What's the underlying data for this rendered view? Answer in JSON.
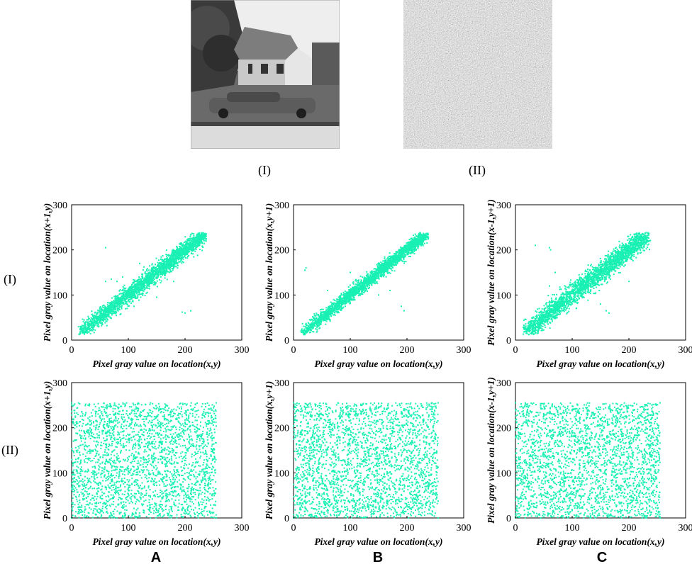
{
  "image_captions": [
    "(I)",
    "(II)"
  ],
  "row_labels": [
    "(I)",
    "(II)"
  ],
  "column_labels": [
    "A",
    "B",
    "C"
  ],
  "marker_color": "#19f0b4",
  "chart_data": [
    {
      "type": "scatter",
      "row": "(I)",
      "column": "A",
      "xlabel": "Pixel gray value on location(x,y)",
      "ylabel": "Pixel gray value on location(x+1,y)",
      "xlim": [
        0,
        300
      ],
      "ylim": [
        0,
        300
      ],
      "xticks": [
        "0",
        "100",
        "200",
        "300"
      ],
      "yticks": [
        "0",
        "100",
        "200",
        "300"
      ],
      "grid": false,
      "pattern": "strongly correlated along y = x from about 15 to 235",
      "points": [
        [
          15,
          18
        ],
        [
          20,
          22
        ],
        [
          25,
          27
        ],
        [
          30,
          28
        ],
        [
          35,
          38
        ],
        [
          40,
          40
        ],
        [
          45,
          43
        ],
        [
          50,
          52
        ],
        [
          55,
          54
        ],
        [
          60,
          62
        ],
        [
          65,
          63
        ],
        [
          70,
          72
        ],
        [
          75,
          74
        ],
        [
          80,
          82
        ],
        [
          85,
          86
        ],
        [
          90,
          88
        ],
        [
          95,
          97
        ],
        [
          100,
          102
        ],
        [
          105,
          103
        ],
        [
          110,
          112
        ],
        [
          115,
          114
        ],
        [
          120,
          122
        ],
        [
          125,
          126
        ],
        [
          130,
          128
        ],
        [
          135,
          137
        ],
        [
          140,
          142
        ],
        [
          145,
          144
        ],
        [
          150,
          152
        ],
        [
          155,
          156
        ],
        [
          160,
          158
        ],
        [
          165,
          167
        ],
        [
          170,
          172
        ],
        [
          175,
          174
        ],
        [
          180,
          182
        ],
        [
          185,
          186
        ],
        [
          190,
          188
        ],
        [
          195,
          197
        ],
        [
          200,
          202
        ],
        [
          205,
          204
        ],
        [
          210,
          212
        ],
        [
          215,
          216
        ],
        [
          220,
          218
        ],
        [
          225,
          227
        ],
        [
          230,
          232
        ],
        [
          235,
          236
        ],
        [
          60,
          130
        ],
        [
          70,
          135
        ],
        [
          80,
          130
        ],
        [
          60,
          205
        ],
        [
          200,
          60
        ],
        [
          210,
          65
        ],
        [
          195,
          62
        ],
        [
          120,
          170
        ],
        [
          150,
          95
        ],
        [
          110,
          75
        ],
        [
          90,
          140
        ],
        [
          180,
          130
        ]
      ]
    },
    {
      "type": "scatter",
      "row": "(I)",
      "column": "B",
      "xlabel": "Pixel gray value on location(x,y)",
      "ylabel": "Pixel gray value on location(x,y+1)",
      "xlim": [
        0,
        300
      ],
      "ylim": [
        0,
        300
      ],
      "xticks": [
        "0",
        "100",
        "200",
        "300"
      ],
      "yticks": [
        "0",
        "100",
        "200",
        "300"
      ],
      "grid": false,
      "pattern": "strongly correlated along y = x from about 15 to 235",
      "points": [
        [
          15,
          17
        ],
        [
          20,
          21
        ],
        [
          25,
          26
        ],
        [
          30,
          31
        ],
        [
          35,
          34
        ],
        [
          40,
          41
        ],
        [
          45,
          46
        ],
        [
          50,
          49
        ],
        [
          55,
          56
        ],
        [
          60,
          61
        ],
        [
          65,
          64
        ],
        [
          70,
          71
        ],
        [
          75,
          76
        ],
        [
          80,
          79
        ],
        [
          85,
          86
        ],
        [
          90,
          91
        ],
        [
          95,
          94
        ],
        [
          100,
          101
        ],
        [
          105,
          106
        ],
        [
          110,
          109
        ],
        [
          115,
          116
        ],
        [
          120,
          121
        ],
        [
          125,
          124
        ],
        [
          130,
          131
        ],
        [
          135,
          136
        ],
        [
          140,
          139
        ],
        [
          145,
          146
        ],
        [
          150,
          151
        ],
        [
          155,
          154
        ],
        [
          160,
          161
        ],
        [
          165,
          166
        ],
        [
          170,
          169
        ],
        [
          175,
          176
        ],
        [
          180,
          181
        ],
        [
          185,
          184
        ],
        [
          190,
          191
        ],
        [
          195,
          196
        ],
        [
          200,
          199
        ],
        [
          205,
          206
        ],
        [
          210,
          211
        ],
        [
          215,
          214
        ],
        [
          220,
          221
        ],
        [
          225,
          226
        ],
        [
          230,
          229
        ],
        [
          235,
          236
        ],
        [
          20,
          155
        ],
        [
          22,
          160
        ],
        [
          195,
          65
        ],
        [
          190,
          75
        ],
        [
          60,
          110
        ],
        [
          170,
          110
        ],
        [
          100,
          150
        ],
        [
          150,
          100
        ]
      ]
    },
    {
      "type": "scatter",
      "row": "(I)",
      "column": "C",
      "xlabel": "Pixel gray value on location(x,y)",
      "ylabel": "Pixel gray value on location(x-1,y+1)",
      "xlim": [
        0,
        300
      ],
      "ylim": [
        0,
        300
      ],
      "xticks": [
        "0",
        "100",
        "200",
        "300"
      ],
      "yticks": [
        "0",
        "100",
        "200",
        "300"
      ],
      "grid": false,
      "pattern": "correlated along y = x with wider spread from about 15 to 230",
      "points": [
        [
          15,
          18
        ],
        [
          20,
          24
        ],
        [
          25,
          22
        ],
        [
          30,
          34
        ],
        [
          35,
          32
        ],
        [
          40,
          44
        ],
        [
          45,
          42
        ],
        [
          50,
          54
        ],
        [
          55,
          52
        ],
        [
          60,
          64
        ],
        [
          65,
          62
        ],
        [
          70,
          74
        ],
        [
          75,
          72
        ],
        [
          80,
          84
        ],
        [
          85,
          82
        ],
        [
          90,
          94
        ],
        [
          95,
          92
        ],
        [
          100,
          104
        ],
        [
          105,
          102
        ],
        [
          110,
          114
        ],
        [
          115,
          112
        ],
        [
          120,
          124
        ],
        [
          125,
          122
        ],
        [
          130,
          134
        ],
        [
          135,
          132
        ],
        [
          140,
          144
        ],
        [
          145,
          142
        ],
        [
          150,
          154
        ],
        [
          155,
          152
        ],
        [
          160,
          164
        ],
        [
          165,
          162
        ],
        [
          170,
          174
        ],
        [
          175,
          172
        ],
        [
          180,
          184
        ],
        [
          185,
          182
        ],
        [
          190,
          194
        ],
        [
          195,
          192
        ],
        [
          200,
          204
        ],
        [
          205,
          202
        ],
        [
          210,
          214
        ],
        [
          215,
          212
        ],
        [
          220,
          224
        ],
        [
          225,
          222
        ],
        [
          230,
          228
        ],
        [
          35,
          210
        ],
        [
          60,
          205
        ],
        [
          62,
          200
        ],
        [
          165,
          60
        ],
        [
          160,
          65
        ],
        [
          70,
          150
        ],
        [
          150,
          80
        ],
        [
          60,
          120
        ],
        [
          200,
          130
        ]
      ]
    },
    {
      "type": "scatter",
      "row": "(II)",
      "column": "A",
      "xlabel": "Pixel gray value on location(x,y)",
      "ylabel": "Pixel gray value on location(x+1,y)",
      "xlim": [
        0,
        300
      ],
      "ylim": [
        0,
        300
      ],
      "xticks": [
        "0",
        "100",
        "200",
        "300"
      ],
      "yticks": [
        "0",
        "100",
        "200",
        "300"
      ],
      "grid": false,
      "pattern": "uniformly distributed over 0 to 255 on both axes",
      "points": [
        [
          0,
          0
        ],
        [
          255,
          0
        ],
        [
          0,
          255
        ],
        [
          255,
          255
        ],
        [
          128,
          128
        ],
        [
          64,
          192
        ],
        [
          192,
          64
        ],
        [
          32,
          32
        ],
        [
          224,
          224
        ],
        [
          32,
          224
        ],
        [
          224,
          32
        ],
        [
          96,
          160
        ],
        [
          160,
          96
        ],
        [
          16,
          128
        ],
        [
          240,
          128
        ],
        [
          128,
          16
        ],
        [
          128,
          240
        ]
      ]
    },
    {
      "type": "scatter",
      "row": "(II)",
      "column": "B",
      "xlabel": "Pixel gray value on location(x,y)",
      "ylabel": "Pixel gray value on location(x,y+1)",
      "xlim": [
        0,
        300
      ],
      "ylim": [
        0,
        300
      ],
      "xticks": [
        "0",
        "100",
        "200",
        "300"
      ],
      "yticks": [
        "0",
        "100",
        "200",
        "300"
      ],
      "grid": false,
      "pattern": "uniformly distributed over 0 to 255 on both axes",
      "points": [
        [
          0,
          0
        ],
        [
          255,
          0
        ],
        [
          0,
          255
        ],
        [
          255,
          255
        ],
        [
          128,
          128
        ],
        [
          64,
          192
        ],
        [
          192,
          64
        ],
        [
          32,
          32
        ],
        [
          224,
          224
        ],
        [
          32,
          224
        ],
        [
          224,
          32
        ],
        [
          96,
          160
        ],
        [
          160,
          96
        ],
        [
          16,
          128
        ],
        [
          240,
          128
        ],
        [
          128,
          16
        ],
        [
          128,
          240
        ]
      ]
    },
    {
      "type": "scatter",
      "row": "(II)",
      "column": "C",
      "xlabel": "Pixel gray value on location(x,y)",
      "ylabel": "Pixel gray value on location(x-1,y+1)",
      "xlim": [
        0,
        300
      ],
      "ylim": [
        0,
        300
      ],
      "xticks": [
        "0",
        "100",
        "200",
        "300"
      ],
      "yticks": [
        "0",
        "100",
        "200",
        "300"
      ],
      "grid": false,
      "pattern": "uniformly distributed over 0 to 255 on both axes",
      "points": [
        [
          0,
          0
        ],
        [
          255,
          0
        ],
        [
          0,
          255
        ],
        [
          255,
          255
        ],
        [
          128,
          128
        ],
        [
          64,
          192
        ],
        [
          192,
          64
        ],
        [
          32,
          32
        ],
        [
          224,
          224
        ],
        [
          32,
          224
        ],
        [
          224,
          32
        ],
        [
          96,
          160
        ],
        [
          160,
          96
        ],
        [
          16,
          128
        ],
        [
          240,
          128
        ],
        [
          128,
          16
        ],
        [
          128,
          240
        ]
      ]
    }
  ]
}
